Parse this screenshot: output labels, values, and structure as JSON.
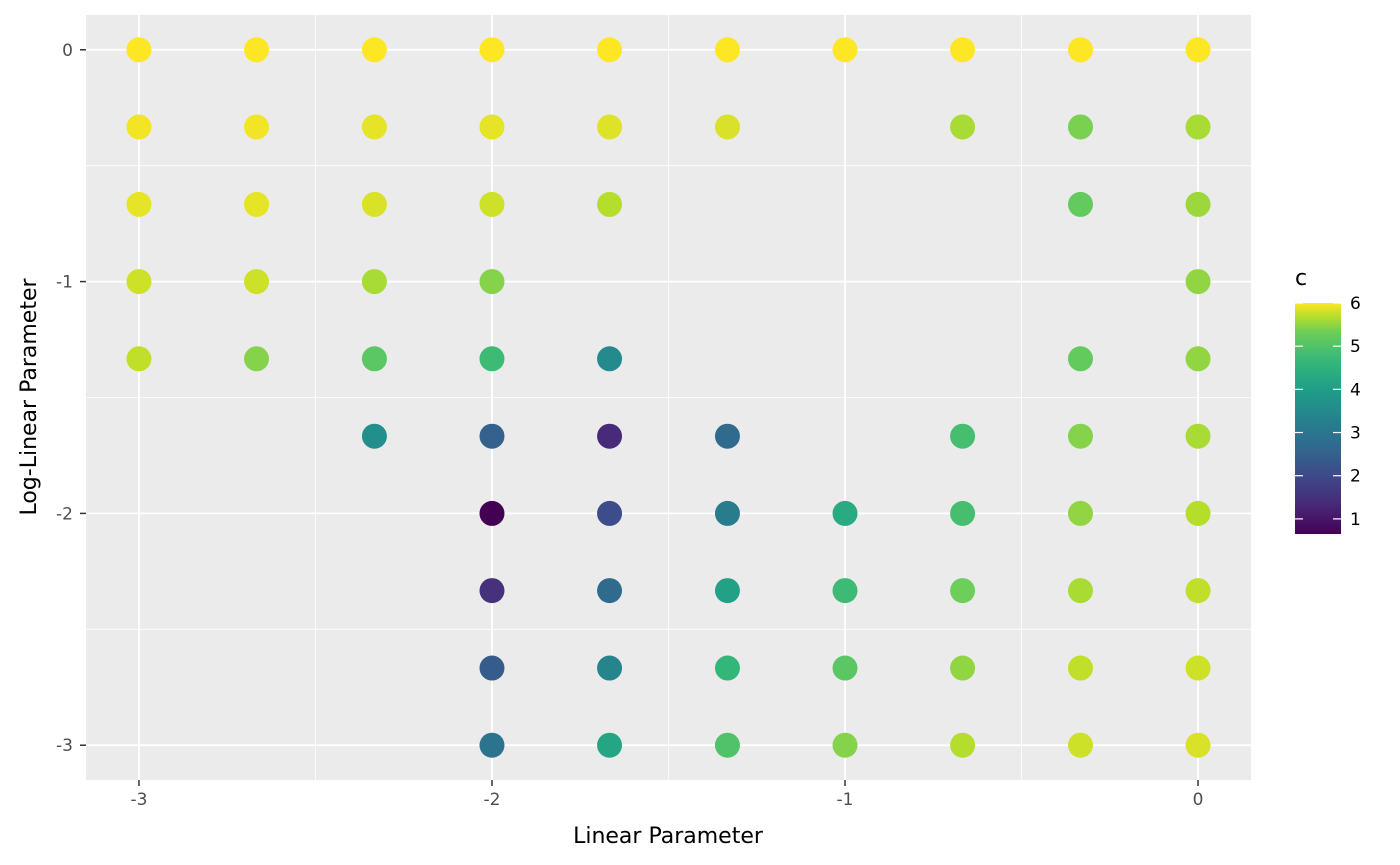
{
  "chart_data": {
    "type": "scatter",
    "xlabel": "Linear Parameter",
    "ylabel": "Log-Linear Parameter",
    "xlim": [
      -3.15,
      0.15
    ],
    "ylim": [
      -3.15,
      0.15
    ],
    "x_ticks": [
      -3,
      -2,
      -1,
      0
    ],
    "y_ticks": [
      -3,
      -2,
      -1,
      0
    ],
    "x_tick_labels": [
      "-3",
      "-2",
      "-1",
      "0"
    ],
    "y_tick_labels": [
      "-3",
      "-2",
      "-1",
      "0"
    ],
    "grid": true,
    "panel_background": "#ebebeb",
    "colormap": "viridis",
    "legend": {
      "title": "c",
      "position": "right",
      "min": 0.65,
      "max": 6.0,
      "ticks": [
        1,
        2,
        3,
        4,
        5,
        6
      ],
      "tick_labels": [
        "1",
        "2",
        "3",
        "4",
        "5",
        "6"
      ]
    },
    "points": [
      {
        "x": -3,
        "y": 0,
        "c": 6.0
      },
      {
        "x": -2.667,
        "y": 0,
        "c": 6.0
      },
      {
        "x": -2.333,
        "y": 0,
        "c": 6.0
      },
      {
        "x": -2,
        "y": 0,
        "c": 6.0
      },
      {
        "x": -1.667,
        "y": 0,
        "c": 6.0
      },
      {
        "x": -1.333,
        "y": 0,
        "c": 6.0
      },
      {
        "x": -1,
        "y": 0,
        "c": 6.0
      },
      {
        "x": -0.667,
        "y": 0,
        "c": 6.0
      },
      {
        "x": -0.333,
        "y": 0,
        "c": 6.0
      },
      {
        "x": 0,
        "y": 0,
        "c": 6.0
      },
      {
        "x": -3,
        "y": -0.333,
        "c": 5.9
      },
      {
        "x": -2.667,
        "y": -0.333,
        "c": 5.9
      },
      {
        "x": -2.333,
        "y": -0.333,
        "c": 5.8
      },
      {
        "x": -2,
        "y": -0.333,
        "c": 5.8
      },
      {
        "x": -1.667,
        "y": -0.333,
        "c": 5.75
      },
      {
        "x": -1.333,
        "y": -0.333,
        "c": 5.7
      },
      {
        "x": -0.667,
        "y": -0.333,
        "c": 5.3
      },
      {
        "x": -0.333,
        "y": -0.333,
        "c": 4.9
      },
      {
        "x": 0,
        "y": -0.333,
        "c": 5.3
      },
      {
        "x": -3,
        "y": -0.667,
        "c": 5.8
      },
      {
        "x": -2.667,
        "y": -0.667,
        "c": 5.8
      },
      {
        "x": -2.333,
        "y": -0.667,
        "c": 5.7
      },
      {
        "x": -2,
        "y": -0.667,
        "c": 5.6
      },
      {
        "x": -1.667,
        "y": -0.667,
        "c": 5.4
      },
      {
        "x": -0.333,
        "y": -0.667,
        "c": 4.7
      },
      {
        "x": 0,
        "y": -0.667,
        "c": 5.2
      },
      {
        "x": -3,
        "y": -1,
        "c": 5.6
      },
      {
        "x": -2.667,
        "y": -1,
        "c": 5.6
      },
      {
        "x": -2.333,
        "y": -1,
        "c": 5.3
      },
      {
        "x": -2,
        "y": -1,
        "c": 5.0
      },
      {
        "x": 0,
        "y": -1,
        "c": 5.1
      },
      {
        "x": -3,
        "y": -1.333,
        "c": 5.5
      },
      {
        "x": -2.667,
        "y": -1.333,
        "c": 5.0
      },
      {
        "x": -2.333,
        "y": -1.333,
        "c": 4.6
      },
      {
        "x": -2,
        "y": -1.333,
        "c": 4.3
      },
      {
        "x": -1.667,
        "y": -1.333,
        "c": 3.2
      },
      {
        "x": -0.333,
        "y": -1.333,
        "c": 4.7
      },
      {
        "x": 0,
        "y": -1.333,
        "c": 5.1
      },
      {
        "x": -2.333,
        "y": -1.667,
        "c": 3.3
      },
      {
        "x": -2,
        "y": -1.667,
        "c": 2.3
      },
      {
        "x": -1.667,
        "y": -1.667,
        "c": 1.3
      },
      {
        "x": -1.333,
        "y": -1.667,
        "c": 2.5
      },
      {
        "x": -0.667,
        "y": -1.667,
        "c": 4.4
      },
      {
        "x": -0.333,
        "y": -1.667,
        "c": 5.0
      },
      {
        "x": 0,
        "y": -1.667,
        "c": 5.3
      },
      {
        "x": -2,
        "y": -2,
        "c": 0.65
      },
      {
        "x": -1.667,
        "y": -2,
        "c": 1.9
      },
      {
        "x": -1.333,
        "y": -2,
        "c": 2.9
      },
      {
        "x": -1,
        "y": -2,
        "c": 3.9
      },
      {
        "x": -0.667,
        "y": -2,
        "c": 4.4
      },
      {
        "x": -0.333,
        "y": -2,
        "c": 5.1
      },
      {
        "x": 0,
        "y": -2,
        "c": 5.4
      },
      {
        "x": -2,
        "y": -2.333,
        "c": 1.4
      },
      {
        "x": -1.667,
        "y": -2.333,
        "c": 2.5
      },
      {
        "x": -1.333,
        "y": -2.333,
        "c": 3.7
      },
      {
        "x": -1,
        "y": -2.333,
        "c": 4.3
      },
      {
        "x": -0.667,
        "y": -2.333,
        "c": 4.8
      },
      {
        "x": -0.333,
        "y": -2.333,
        "c": 5.3
      },
      {
        "x": 0,
        "y": -2.333,
        "c": 5.5
      },
      {
        "x": -2,
        "y": -2.667,
        "c": 2.2
      },
      {
        "x": -1.667,
        "y": -2.667,
        "c": 3.1
      },
      {
        "x": -1.333,
        "y": -2.667,
        "c": 4.2
      },
      {
        "x": -1,
        "y": -2.667,
        "c": 4.6
      },
      {
        "x": -0.667,
        "y": -2.667,
        "c": 5.1
      },
      {
        "x": -0.333,
        "y": -2.667,
        "c": 5.5
      },
      {
        "x": 0,
        "y": -2.667,
        "c": 5.6
      },
      {
        "x": -2,
        "y": -3,
        "c": 2.7
      },
      {
        "x": -1.667,
        "y": -3,
        "c": 3.8
      },
      {
        "x": -1.333,
        "y": -3,
        "c": 4.5
      },
      {
        "x": -1,
        "y": -3,
        "c": 5.0
      },
      {
        "x": -0.667,
        "y": -3,
        "c": 5.4
      },
      {
        "x": -0.333,
        "y": -3,
        "c": 5.6
      },
      {
        "x": 0,
        "y": -3,
        "c": 5.7
      }
    ]
  }
}
